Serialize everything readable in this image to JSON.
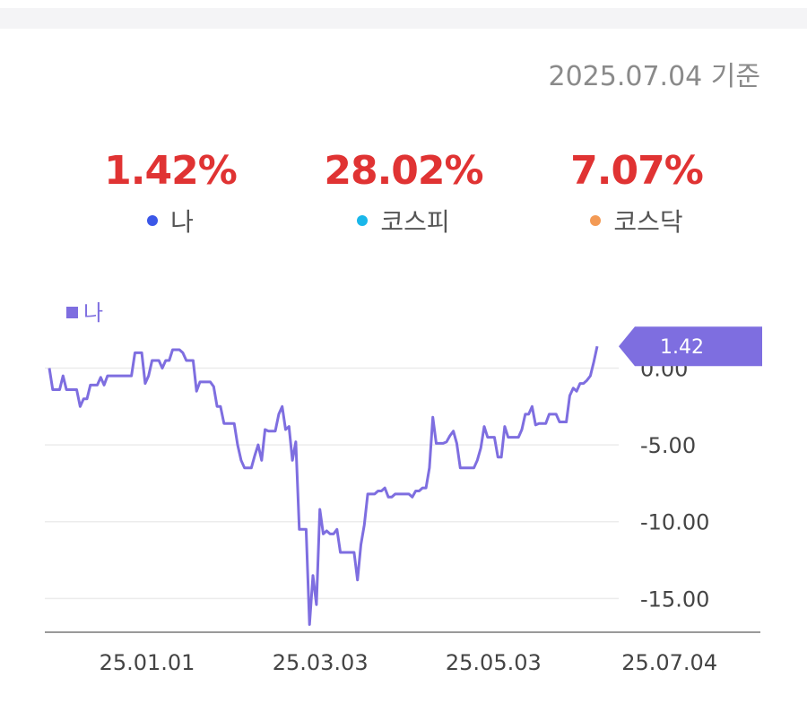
{
  "header": {
    "as_of": "2025.07.04 기준"
  },
  "summary": [
    {
      "value": "1.42%",
      "name": "나",
      "color": "#3b57e8"
    },
    {
      "value": "28.02%",
      "name": "코스피",
      "color": "#19b7ea"
    },
    {
      "value": "7.07%",
      "name": "코스닥",
      "color": "#f39a55"
    }
  ],
  "chart_data": {
    "type": "line",
    "series": [
      {
        "name": "나",
        "color": "#7e6ee0",
        "x_start": "2024-11-26",
        "x_end": "2025-08-05",
        "values": [
          0,
          -1.4,
          -1.4,
          -1.4,
          -0.5,
          -1.4,
          -1.4,
          -1.4,
          -1.4,
          -2.5,
          -2,
          -2,
          -1.1,
          -1.1,
          -1.1,
          -0.6,
          -1.1,
          -0.5,
          -0.5,
          -0.5,
          -0.5,
          -0.5,
          -0.5,
          -0.5,
          -0.5,
          1,
          1,
          1,
          -1,
          -0.5,
          0.5,
          0.5,
          0.5,
          0,
          0.5,
          0.5,
          1.2,
          1.2,
          1.2,
          1,
          0.5,
          0.5,
          0.5,
          -1.5,
          -0.9,
          -0.9,
          -0.9,
          -0.9,
          -1.2,
          -2.5,
          -2.5,
          -3.6,
          -3.6,
          -3.6,
          -3.6,
          -5,
          -6,
          -6.5,
          -6.5,
          -6.5,
          -5.7,
          -5,
          -6,
          -4,
          -4.1,
          -4.1,
          -4.1,
          -3,
          -2.5,
          -4,
          -3.8,
          -6,
          -4.8,
          -10.5,
          -10.5,
          -10.5,
          -16.7,
          -13.5,
          -15.4,
          -9.2,
          -10.8,
          -10.6,
          -10.8,
          -10.8,
          -10.5,
          -12,
          -12,
          -12,
          -12,
          -12,
          -13.8,
          -11.5,
          -10.2,
          -8.2,
          -8.2,
          -8.2,
          -8,
          -8,
          -7.8,
          -8.4,
          -8.4,
          -8.2,
          -8.2,
          -8.2,
          -8.2,
          -8.2,
          -8.4,
          -8,
          -8,
          -7.8,
          -7.8,
          -6.5,
          -3.2,
          -4.9,
          -4.9,
          -4.9,
          -4.8,
          -4.4,
          -4.1,
          -4.9,
          -6.5,
          -6.5,
          -6.5,
          -6.5,
          -6.5,
          -6,
          -5.2,
          -3.8,
          -4.5,
          -4.5,
          -4.5,
          -5.8,
          -5.8,
          -3.8,
          -4.5,
          -4.5,
          -4.5,
          -4.5,
          -4,
          -3,
          -3,
          -2.5,
          -3.7,
          -3.6,
          -3.6,
          -3.6,
          -3,
          -3,
          -3,
          -3.5,
          -3.5,
          -3.5,
          -1.8,
          -1.3,
          -1.5,
          -1,
          -1,
          -0.8,
          -0.5,
          0.4,
          1.42
        ]
      }
    ],
    "x_tick_labels": [
      "25.01.01",
      "25.03.03",
      "25.05.03",
      "25.07.04"
    ],
    "x_tick_dates": [
      "2025-01-01",
      "2025-03-03",
      "2025-05-03",
      "2025-07-04"
    ],
    "y_ticks": [
      0,
      -5,
      -10,
      -15
    ],
    "y_tick_labels": [
      "0.00",
      "-5.00",
      "-10.00",
      "-15.00"
    ],
    "ylim": [
      -17.2,
      1.9
    ],
    "last_value_label": "1.42",
    "grid": true,
    "legend": "top-left"
  }
}
